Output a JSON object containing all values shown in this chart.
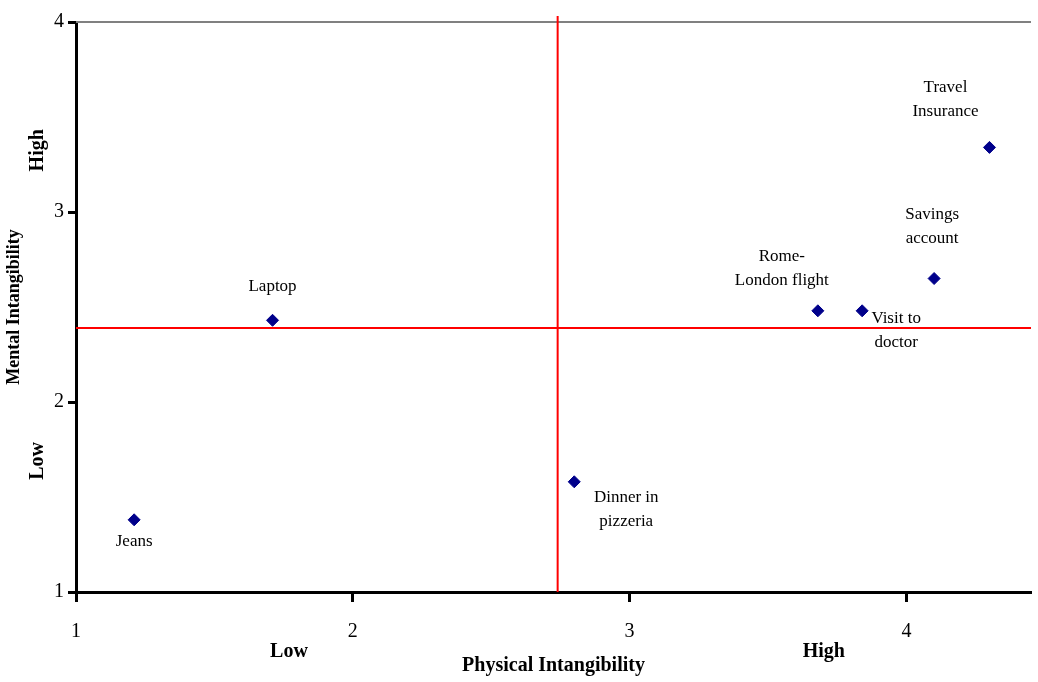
{
  "chart_data": {
    "type": "scatter",
    "xlabel": "Physical Intangibility",
    "ylabel": "Mental Intangibility",
    "series": [
      {
        "color": "#00008b",
        "x": [
          1.21,
          1.71,
          2.8,
          3.68,
          3.84,
          4.1,
          4.3
        ],
        "values": [
          1.38,
          2.43,
          1.58,
          2.48,
          2.48,
          2.65,
          3.34
        ]
      }
    ],
    "marker": "diamond",
    "xlim": [
      1,
      4.45
    ],
    "xticks": [
      1,
      2,
      3,
      4
    ],
    "ylim": [
      1,
      4
    ],
    "yticks": [
      1,
      2,
      3,
      4
    ],
    "grid": false,
    "legend": false,
    "ref_lines": [
      {
        "axis": "x",
        "value": 2.74,
        "color": "#ff0000"
      },
      {
        "axis": "y",
        "value": 2.39,
        "color": "#ff0000"
      }
    ],
    "annotations": [
      "Low",
      "High",
      "Low",
      "High",
      {
        "text": "Jeans",
        "x": 1.21,
        "y": 1.38
      },
      {
        "text": "Laptop",
        "x": 1.71,
        "y": 2.43
      },
      {
        "text": "Dinner in\npizzeria",
        "x": 2.8,
        "y": 1.58
      },
      {
        "text": "Rome-\nLondon flight",
        "x": 3.68,
        "y": 2.48
      },
      {
        "text": "Visit to\ndoctor",
        "x": 3.84,
        "y": 2.48
      },
      {
        "text": "Savings\naccount",
        "x": 4.1,
        "y": 2.65
      },
      {
        "text": "Travel\nInsurance",
        "x": 4.3,
        "y": 3.34
      }
    ]
  }
}
